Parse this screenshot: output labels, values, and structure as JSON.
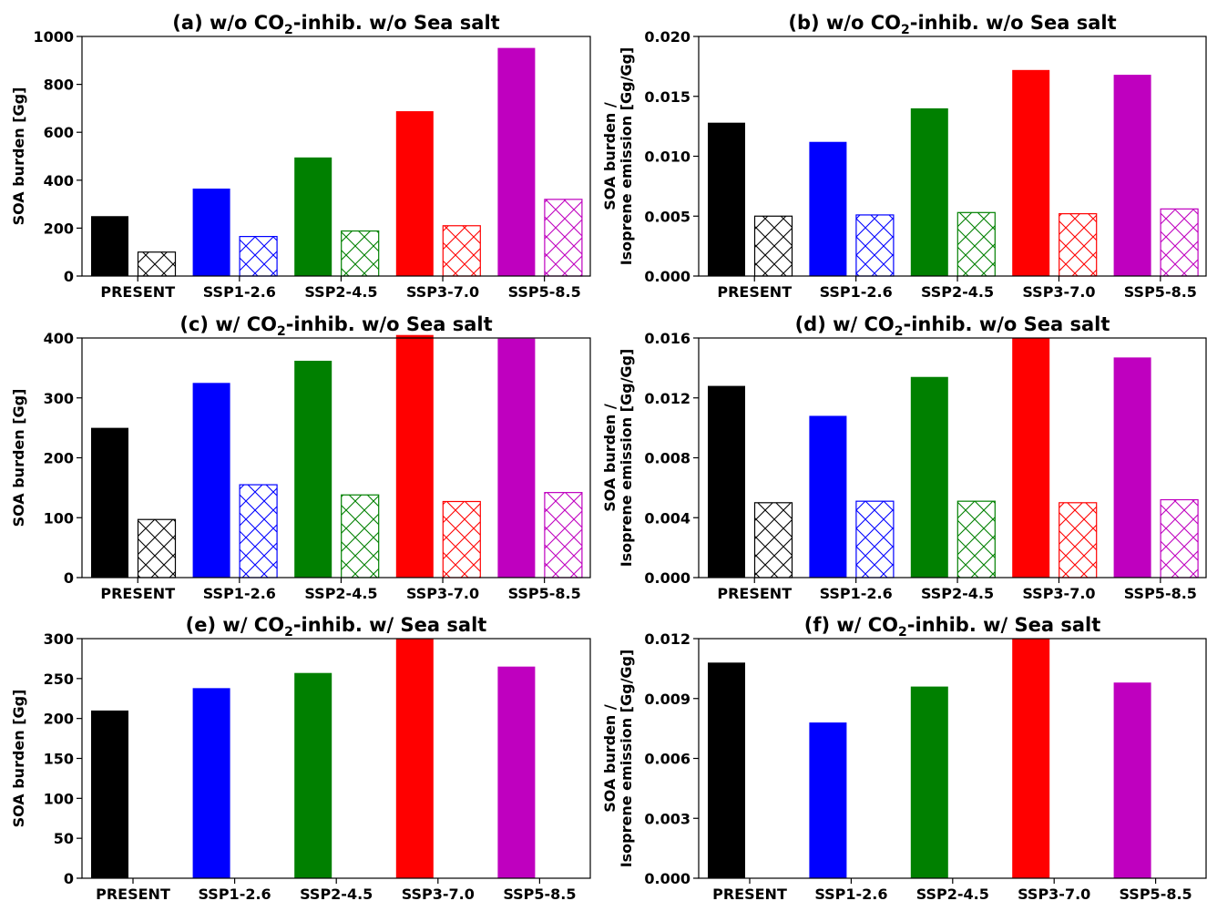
{
  "chart_data": [
    {
      "panel": "a",
      "type": "bar",
      "title": "(a) w/o CO₂-inhib. w/o Sea salt",
      "title_parts": [
        "(a) w/o CO",
        "2",
        "-inhib. w/o Sea salt"
      ],
      "ylabel": [
        "SOA burden [Gg]"
      ],
      "categories": [
        "PRESENT",
        "SSP1-2.6",
        "SSP2-4.5",
        "SSP3-7.0",
        "SSP5-8.5"
      ],
      "ylim": [
        0,
        1000
      ],
      "yticks": [
        "0",
        "200",
        "400",
        "600",
        "800",
        "1000"
      ],
      "series": [
        {
          "style": "solid",
          "values": [
            250,
            365,
            495,
            688,
            952
          ]
        },
        {
          "style": "hatched",
          "values": [
            100,
            165,
            188,
            210,
            320
          ]
        }
      ]
    },
    {
      "panel": "b",
      "type": "bar",
      "title": "(b) w/o CO₂-inhib. w/o Sea salt",
      "title_parts": [
        "(b) w/o CO",
        "2",
        "-inhib. w/o Sea salt"
      ],
      "ylabel": [
        "SOA burden /",
        "Isoprene emission [Gg/Gg]"
      ],
      "categories": [
        "PRESENT",
        "SSP1-2.6",
        "SSP2-4.5",
        "SSP3-7.0",
        "SSP5-8.5"
      ],
      "ylim": [
        0,
        0.02
      ],
      "yticks": [
        "0.000",
        "0.005",
        "0.010",
        "0.015",
        "0.020"
      ],
      "series": [
        {
          "style": "solid",
          "values": [
            0.0128,
            0.0112,
            0.014,
            0.0172,
            0.0168
          ]
        },
        {
          "style": "hatched",
          "values": [
            0.005,
            0.0051,
            0.0053,
            0.0052,
            0.0056
          ]
        }
      ]
    },
    {
      "panel": "c",
      "type": "bar",
      "title": "(c) w/ CO₂-inhib. w/o Sea salt",
      "title_parts": [
        "(c) w/ CO",
        "2",
        "-inhib. w/o Sea salt"
      ],
      "ylabel": [
        "SOA burden [Gg]"
      ],
      "categories": [
        "PRESENT",
        "SSP1-2.6",
        "SSP2-4.5",
        "SSP3-7.0",
        "SSP5-8.5"
      ],
      "ylim": [
        0,
        400
      ],
      "yticks": [
        "0",
        "100",
        "200",
        "300",
        "400"
      ],
      "series": [
        {
          "style": "solid",
          "values": [
            250,
            325,
            362,
            405,
            399
          ]
        },
        {
          "style": "hatched",
          "values": [
            97,
            155,
            138,
            127,
            142
          ]
        }
      ]
    },
    {
      "panel": "d",
      "type": "bar",
      "title": "(d) w/ CO₂-inhib. w/o Sea salt",
      "title_parts": [
        "(d) w/ CO",
        "2",
        "-inhib. w/o Sea salt"
      ],
      "ylabel": [
        "SOA burden /",
        "Isoprene emission [Gg/Gg]"
      ],
      "categories": [
        "PRESENT",
        "SSP1-2.6",
        "SSP2-4.5",
        "SSP3-7.0",
        "SSP5-8.5"
      ],
      "ylim": [
        0,
        0.016
      ],
      "yticks": [
        "0.000",
        "0.004",
        "0.008",
        "0.012",
        "0.016"
      ],
      "series": [
        {
          "style": "solid",
          "values": [
            0.0128,
            0.0108,
            0.0134,
            0.016,
            0.0147
          ]
        },
        {
          "style": "hatched",
          "values": [
            0.005,
            0.0051,
            0.0051,
            0.005,
            0.0052
          ]
        }
      ]
    },
    {
      "panel": "e",
      "type": "bar",
      "title": "(e) w/ CO₂-inhib. w/ Sea salt",
      "title_parts": [
        "(e) w/ CO",
        "2",
        "-inhib. w/ Sea salt"
      ],
      "ylabel": [
        "SOA burden [Gg]"
      ],
      "categories": [
        "PRESENT",
        "SSP1-2.6",
        "SSP2-4.5",
        "SSP3-7.0",
        "SSP5-8.5"
      ],
      "ylim": [
        0,
        300
      ],
      "yticks": [
        "0",
        "50",
        "100",
        "150",
        "200",
        "250",
        "300"
      ],
      "series": [
        {
          "style": "solid",
          "values": [
            210,
            238,
            257,
            300,
            265
          ]
        }
      ]
    },
    {
      "panel": "f",
      "type": "bar",
      "title": "(f) w/ CO₂-inhib. w/ Sea salt",
      "title_parts": [
        "(f) w/ CO",
        "2",
        "-inhib. w/ Sea salt"
      ],
      "ylabel": [
        "SOA burden /",
        "Isoprene emission [Gg/Gg]"
      ],
      "categories": [
        "PRESENT",
        "SSP1-2.6",
        "SSP2-4.5",
        "SSP3-7.0",
        "SSP5-8.5"
      ],
      "ylim": [
        0,
        0.012
      ],
      "yticks": [
        "0.000",
        "0.003",
        "0.006",
        "0.009",
        "0.012"
      ],
      "series": [
        {
          "style": "solid",
          "values": [
            0.0108,
            0.0078,
            0.0096,
            0.012,
            0.0098
          ]
        }
      ]
    }
  ],
  "colors": [
    "#000000",
    "#0000ff",
    "#008000",
    "#ff0000",
    "#bf00bf"
  ]
}
